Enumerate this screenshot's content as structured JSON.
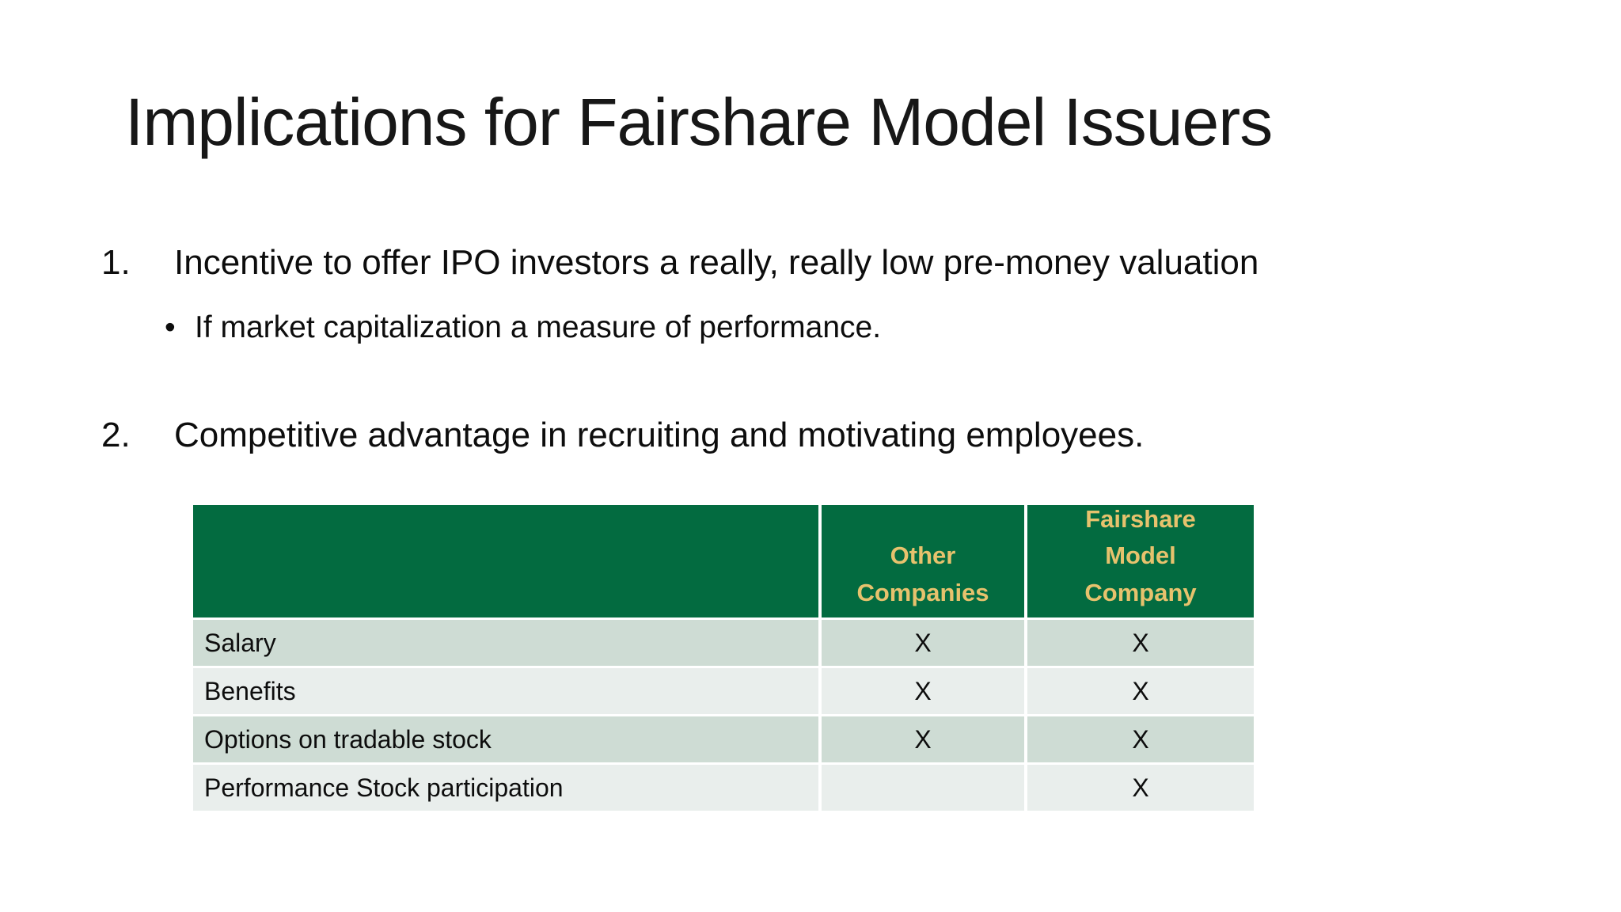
{
  "slide": {
    "title": "Implications for Fairshare Model Issuers"
  },
  "list": {
    "item1": {
      "number": "1.",
      "text": "Incentive to offer IPO investors a really, really low pre-money valuation"
    },
    "item1_sub": {
      "marker": "•",
      "text": "If market capitalization a measure of performance."
    },
    "item2": {
      "number": "2.",
      "text": "Competitive advantage in recruiting and motivating employees."
    }
  },
  "table": {
    "headers": {
      "feature": "",
      "other": "Other\nCompanies",
      "fairshare": "Fairshare\nModel\nCompany"
    },
    "rows": [
      {
        "label": "Salary",
        "other": "X",
        "fairshare": "X"
      },
      {
        "label": "Benefits",
        "other": "X",
        "fairshare": "X"
      },
      {
        "label": "Options on tradable stock",
        "other": "X",
        "fairshare": "X"
      },
      {
        "label": "Performance Stock participation",
        "other": "",
        "fairshare": "X"
      }
    ]
  },
  "colors": {
    "header_bg": "#036b40",
    "header_text": "#e7c26d",
    "row_odd_bg": "#cedcd4",
    "row_even_bg": "#e9eeec",
    "separator": "#ffffff",
    "body_text": "#0d0d0d"
  }
}
